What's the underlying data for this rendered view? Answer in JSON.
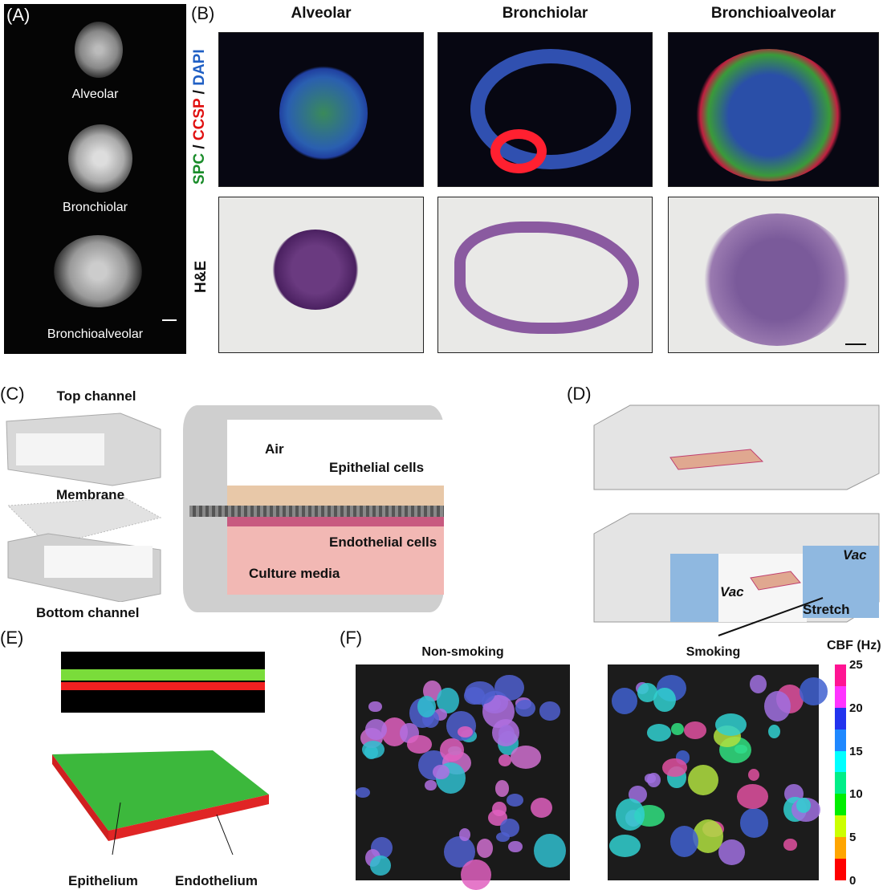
{
  "panels": {
    "A": {
      "label": "(A)",
      "organoids": [
        "Alveolar",
        "Bronchiolar",
        "Bronchioalveolar"
      ]
    },
    "B": {
      "label": "(B)",
      "columns": [
        "Alveolar",
        "Bronchiolar",
        "Bronchioalveolar"
      ],
      "row_labels": {
        "stain": {
          "spc": "SPC",
          "sep1": " / ",
          "ccsp": "CCSP",
          "sep2": " / ",
          "dapi": "DAPI"
        },
        "he": "H&E"
      },
      "stain_colors": {
        "spc": "#1a8c2a",
        "ccsp": "#e01010",
        "dapi": "#1f5fc4"
      }
    },
    "C": {
      "label": "(C)",
      "top_channel": "Top channel",
      "membrane": "Membrane",
      "bottom_channel": "Bottom channel",
      "air": "Air",
      "epithelial": "Epithelial cells",
      "endothelial": "Endothelial cells",
      "media": "Culture media"
    },
    "D": {
      "label": "(D)",
      "vac_left": "Vac",
      "vac_right": "Vac",
      "stretch": "Stretch"
    },
    "E": {
      "label": "(E)",
      "epithelium": "Epithelium",
      "endothelium": "Endothelium"
    },
    "F": {
      "label": "(F)",
      "non_smoking": "Non-smoking",
      "smoking": "Smoking",
      "colorbar": {
        "title": "CBF (Hz)",
        "ticks": [
          "25",
          "20",
          "15",
          "10",
          "5",
          "0"
        ],
        "range": [
          0,
          25
        ],
        "colors": [
          "#ff1493",
          "#ff33ff",
          "#2233ee",
          "#1e88ff",
          "#00ffff",
          "#00ee88",
          "#00ee00",
          "#ccff00",
          "#ffa500",
          "#ff0000"
        ]
      }
    }
  }
}
